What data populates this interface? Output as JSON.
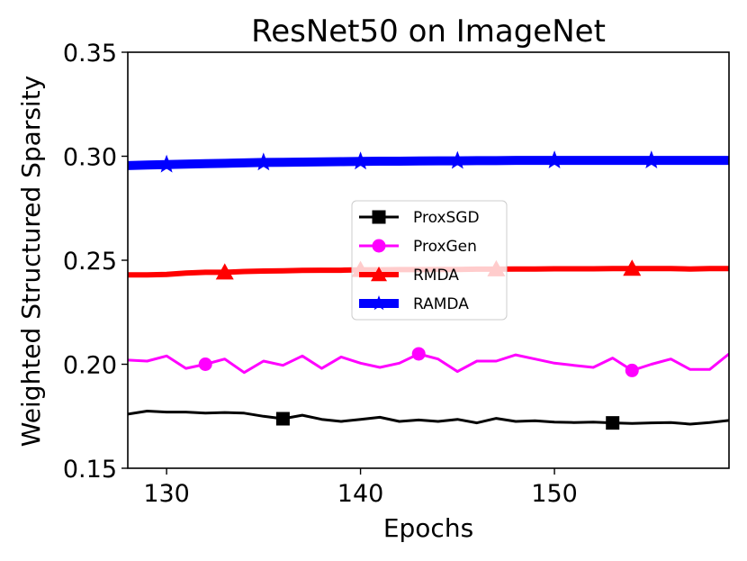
{
  "chart_data": {
    "type": "line",
    "title": "ResNet50 on ImageNet",
    "xlabel": "Epochs",
    "ylabel": "Weighted Structured Sparsity",
    "xlim": [
      128,
      159
    ],
    "ylim": [
      0.15,
      0.35
    ],
    "xticks": [
      130,
      140,
      150
    ],
    "xtick_labels": [
      "130",
      "140",
      "150"
    ],
    "yticks": [
      0.15,
      0.2,
      0.25,
      0.3,
      0.35
    ],
    "ytick_labels": [
      "0.15",
      "0.20",
      "0.25",
      "0.30",
      "0.35"
    ],
    "legend_position": "center",
    "series": [
      {
        "name": "ProxSGD",
        "color": "#000000",
        "marker": "square",
        "x": [
          128,
          129,
          130,
          131,
          132,
          133,
          134,
          135,
          136,
          137,
          138,
          139,
          140,
          141,
          142,
          143,
          144,
          145,
          146,
          147,
          148,
          149,
          150,
          151,
          152,
          153,
          154,
          155,
          156,
          157,
          158,
          159
        ],
        "y": [
          0.176,
          0.1775,
          0.177,
          0.177,
          0.1765,
          0.1768,
          0.1765,
          0.175,
          0.1738,
          0.1755,
          0.1735,
          0.1725,
          0.1735,
          0.1745,
          0.1725,
          0.1732,
          0.1725,
          0.1735,
          0.1718,
          0.174,
          0.1725,
          0.1728,
          0.1722,
          0.172,
          0.1722,
          0.1718,
          0.1715,
          0.1718,
          0.172,
          0.1712,
          0.172,
          0.173
        ],
        "marker_x": [
          136,
          153
        ]
      },
      {
        "name": "ProxGen",
        "color": "#ff00ff",
        "marker": "circle",
        "x": [
          128,
          129,
          130,
          131,
          132,
          133,
          134,
          135,
          136,
          137,
          138,
          139,
          140,
          141,
          142,
          143,
          144,
          145,
          146,
          147,
          148,
          149,
          150,
          151,
          152,
          153,
          154,
          155,
          156,
          157,
          158,
          159
        ],
        "y": [
          0.202,
          0.2015,
          0.204,
          0.198,
          0.2,
          0.2025,
          0.196,
          0.2015,
          0.1995,
          0.204,
          0.198,
          0.2035,
          0.2005,
          0.1985,
          0.2005,
          0.205,
          0.2025,
          0.1965,
          0.2015,
          0.2015,
          0.2045,
          0.2025,
          0.2005,
          0.1995,
          0.1985,
          0.203,
          0.197,
          0.2,
          0.2025,
          0.1975,
          0.1975,
          0.205
        ],
        "marker_x": [
          132,
          143,
          154
        ]
      },
      {
        "name": "RMDA",
        "color": "#ff0000",
        "marker": "triangle",
        "x": [
          128,
          129,
          130,
          131,
          132,
          133,
          134,
          135,
          136,
          137,
          138,
          139,
          140,
          141,
          142,
          143,
          144,
          145,
          146,
          147,
          148,
          149,
          150,
          151,
          152,
          153,
          154,
          155,
          156,
          157,
          158,
          159
        ],
        "y": [
          0.243,
          0.243,
          0.2432,
          0.2438,
          0.2442,
          0.2442,
          0.2446,
          0.2448,
          0.2449,
          0.2451,
          0.2452,
          0.2452,
          0.2454,
          0.2454,
          0.2455,
          0.2455,
          0.2456,
          0.2456,
          0.2457,
          0.2457,
          0.2458,
          0.2458,
          0.2459,
          0.2459,
          0.2459,
          0.246,
          0.246,
          0.246,
          0.246,
          0.2458,
          0.246,
          0.246
        ],
        "marker_x": [
          133,
          140,
          147,
          154
        ]
      },
      {
        "name": "RAMDA",
        "color": "#0000ff",
        "marker": "star",
        "x": [
          128,
          129,
          130,
          131,
          132,
          133,
          134,
          135,
          136,
          137,
          138,
          139,
          140,
          141,
          142,
          143,
          144,
          145,
          146,
          147,
          148,
          149,
          150,
          151,
          152,
          153,
          154,
          155,
          156,
          157,
          158,
          159
        ],
        "y": [
          0.2955,
          0.2958,
          0.296,
          0.2962,
          0.2964,
          0.2966,
          0.2968,
          0.297,
          0.2971,
          0.2972,
          0.2973,
          0.2974,
          0.2975,
          0.2976,
          0.2976,
          0.2977,
          0.2978,
          0.2978,
          0.2979,
          0.2979,
          0.298,
          0.298,
          0.298,
          0.298,
          0.298,
          0.298,
          0.298,
          0.298,
          0.298,
          0.298,
          0.298,
          0.298
        ],
        "marker_x": [
          130,
          135,
          140,
          145,
          150,
          155
        ]
      }
    ]
  }
}
